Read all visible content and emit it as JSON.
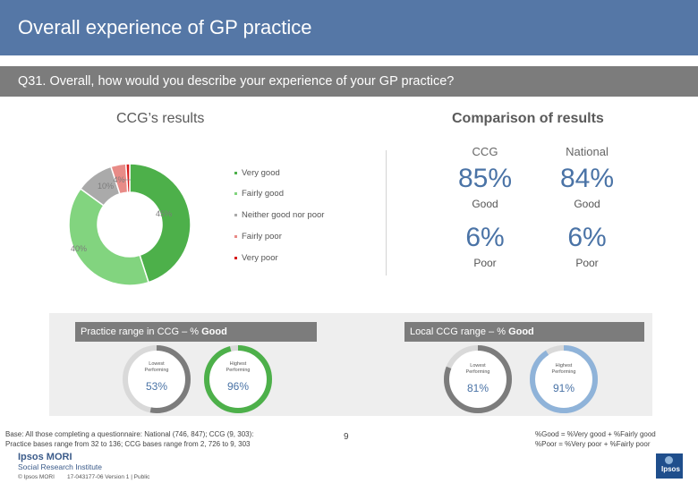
{
  "header": {
    "title": "Overall experience of GP practice"
  },
  "question": {
    "text": "Q31. Overall, how would you describe your experience of your GP practice?"
  },
  "ccg_results": {
    "heading": "CCG’s results"
  },
  "comparison": {
    "heading": "Comparison of results",
    "ccg_label": "CCG",
    "national_label": "National",
    "good_ccg": "85%",
    "good_national": "84%",
    "good_label": "Good",
    "poor_ccg": "6%",
    "poor_national": "6%",
    "poor_label": "Poor"
  },
  "chart_data": {
    "type": "pie",
    "categories": [
      "Very good",
      "Fairly good",
      "Neither good nor poor",
      "Fairly poor",
      "Very poor"
    ],
    "values": [
      45,
      40,
      10,
      4,
      1
    ],
    "labels": [
      "45%",
      "40%",
      "10%",
      "4%",
      ""
    ],
    "colors": [
      "#4db04a",
      "#82d47f",
      "#aaaaaa",
      "#e88b87",
      "#d61a1a"
    ]
  },
  "practice_range": {
    "title_prefix": "Practice range in CCG – % ",
    "title_bold": "Good",
    "lowest_label_1": "Lowest",
    "lowest_label_2": "Performing",
    "lowest_value": "53%",
    "lowest_fraction": 0.53,
    "highest_label_1": "Highest",
    "highest_label_2": "Performing",
    "highest_value": "96%",
    "highest_fraction": 0.96
  },
  "local_range": {
    "title_prefix": "Local CCG range – % ",
    "title_bold": "Good",
    "lowest_label_1": "Lowest",
    "lowest_label_2": "Performing",
    "lowest_value": "81%",
    "lowest_fraction": 0.81,
    "highest_label_1": "Highest",
    "highest_label_2": "Performing",
    "highest_value": "91%",
    "highest_fraction": 0.91
  },
  "footer": {
    "base_line1": "Base: All those completing a questionnaire: National (746, 847); CCG (9, 303):",
    "base_line2": "Practice bases range from 32 to 136; CCG bases range from 2, 726 to 9, 303",
    "def_good": "%Good = %Very good + %Fairly good",
    "def_poor": "%Poor = %Very poor + %Fairly poor",
    "page_number": "9",
    "logo_line1": "Ipsos MORI",
    "logo_line2": "Social Research Institute",
    "copyright": "© Ipsos MORI",
    "job_ref": "17-043177-06 Version 1 | Public",
    "brand_mark": "Ipsos"
  },
  "colors": {
    "title_bg": "#5577a6",
    "question_bg": "#7c7c7c",
    "accent": "#4a73a6"
  }
}
